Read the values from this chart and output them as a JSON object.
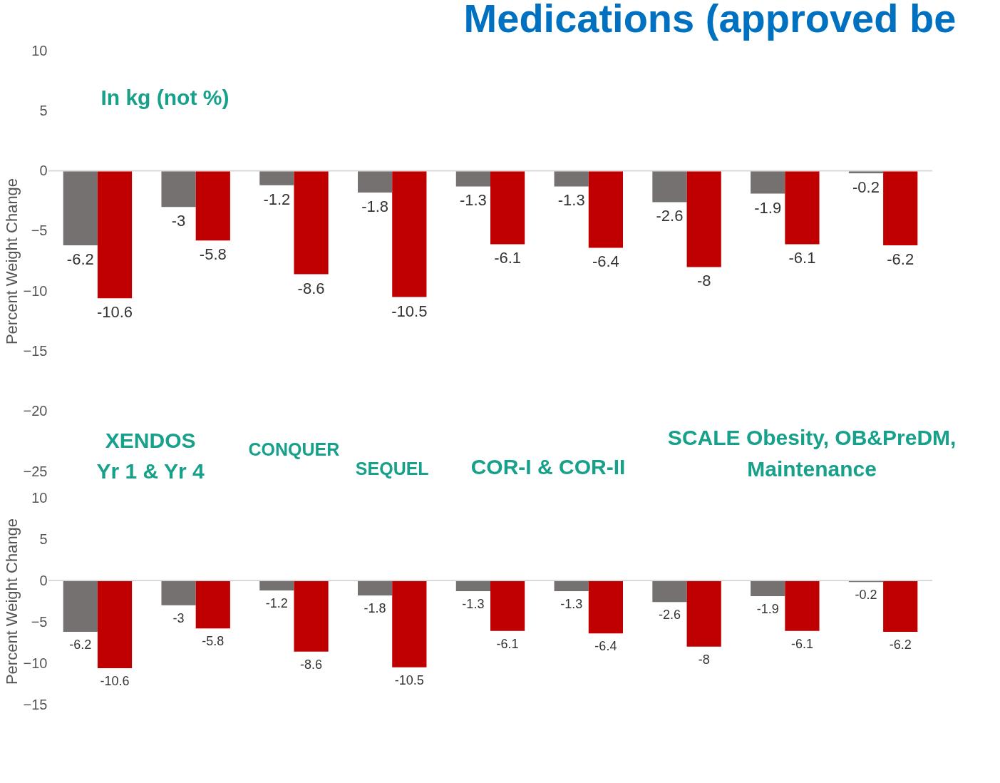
{
  "chart_data": [
    {
      "type": "bar",
      "title": "Medications (approved be",
      "ylabel": "Percent Weight Change",
      "categories": [
        null,
        null,
        null,
        null,
        null,
        null,
        null,
        null,
        null
      ],
      "series": [
        {
          "color": "#767171",
          "values": [
            -6.2,
            -3,
            -1.2,
            -1.8,
            -1.3,
            -1.3,
            -2.6,
            -1.9,
            -0.2
          ]
        },
        {
          "color": "#c00000",
          "values": [
            -10.6,
            -5.8,
            -8.6,
            -10.5,
            -6.1,
            -6.4,
            -8,
            -6.1,
            -6.2
          ]
        }
      ],
      "ylim": [
        -25,
        10
      ],
      "yticks": [
        -25,
        -20,
        -15,
        -10,
        -5,
        0,
        5,
        10
      ],
      "data_labels": true,
      "ref_lines": [
        {
          "axis": "y",
          "value": 0,
          "color": "#d9d9d9"
        }
      ],
      "annotations": [
        "In kg (not %)",
        "XENDOS\nYr 1 & Yr 4",
        "CONQUER",
        "SEQUEL",
        "COR-I & COR-II",
        "SCALE Obesity, OB&PreDM,\nMaintenance"
      ]
    },
    {
      "type": "bar",
      "ylabel": "Percent Weight Change",
      "categories": [
        null,
        null,
        null,
        null,
        null,
        null,
        null,
        null,
        null
      ],
      "series": [
        {
          "color": "#767171",
          "values": [
            -6.2,
            -3,
            -1.2,
            -1.8,
            -1.3,
            -1.3,
            -2.6,
            -1.9,
            -0.2
          ]
        },
        {
          "color": "#c00000",
          "values": [
            -10.6,
            -5.8,
            -8.6,
            -10.5,
            -6.1,
            -6.4,
            -8,
            -6.1,
            -6.2
          ]
        }
      ],
      "ylim": [
        -15,
        10
      ],
      "yticks": [
        -15,
        -10,
        -5,
        0,
        5,
        10
      ],
      "data_labels": true,
      "ref_lines": [
        {
          "axis": "y",
          "value": 0,
          "color": "#d9d9d9"
        }
      ]
    }
  ]
}
